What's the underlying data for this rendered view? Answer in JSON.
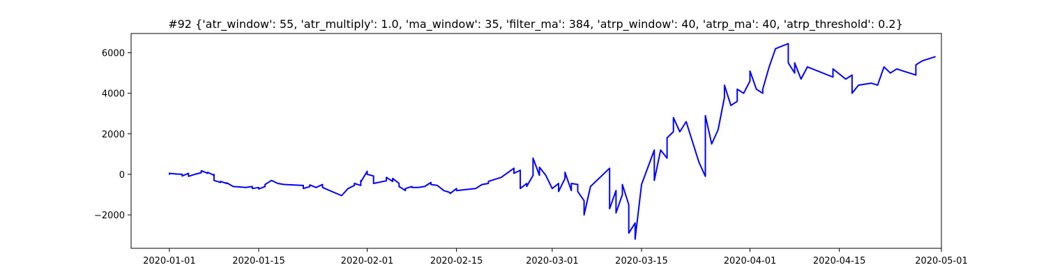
{
  "chart_data": {
    "type": "line",
    "title": "#92 {'atr_window': 55, 'atr_multiply': 1.0, 'ma_window': 35, 'filter_ma': 384, 'atrp_window': 40, 'atrp_ma': 40, 'atrp_threshold': 0.2}",
    "xlabel": "",
    "ylabel": "",
    "x_type": "date",
    "xlim": [
      "2019-12-26",
      "2020-05-01"
    ],
    "ylim": [
      -3650,
      6950
    ],
    "x_ticks": [
      "2020-01-01",
      "2020-01-15",
      "2020-02-01",
      "2020-02-15",
      "2020-03-01",
      "2020-03-15",
      "2020-04-01",
      "2020-04-15",
      "2020-05-01"
    ],
    "y_ticks": [
      -2000,
      0,
      2000,
      4000,
      6000
    ],
    "grid": false,
    "legend": "none",
    "series": [
      {
        "color": "#0000ff",
        "points": [
          [
            "2020-01-01",
            0
          ],
          [
            "2020-01-01",
            50
          ],
          [
            "2020-01-02",
            20
          ],
          [
            "2020-01-03",
            0
          ],
          [
            "2020-01-03",
            -80
          ],
          [
            "2020-01-04",
            50
          ],
          [
            "2020-01-04",
            -100
          ],
          [
            "2020-01-05",
            0
          ],
          [
            "2020-01-06",
            80
          ],
          [
            "2020-01-06",
            180
          ],
          [
            "2020-01-07",
            50
          ],
          [
            "2020-01-07",
            100
          ],
          [
            "2020-01-08",
            -50
          ],
          [
            "2020-01-08",
            0
          ],
          [
            "2020-01-08",
            -300
          ],
          [
            "2020-01-09",
            -400
          ],
          [
            "2020-01-09",
            -350
          ],
          [
            "2020-01-10",
            -450
          ],
          [
            "2020-01-10",
            -420
          ],
          [
            "2020-01-11",
            -600
          ],
          [
            "2020-01-12",
            -620
          ],
          [
            "2020-01-13",
            -650
          ],
          [
            "2020-01-14",
            -600
          ],
          [
            "2020-01-14",
            -700
          ],
          [
            "2020-01-15",
            -650
          ],
          [
            "2020-01-15",
            -720
          ],
          [
            "2020-01-16",
            -600
          ],
          [
            "2020-01-16",
            -500
          ],
          [
            "2020-01-17",
            -300
          ],
          [
            "2020-01-18",
            -450
          ],
          [
            "2020-01-19",
            -500
          ],
          [
            "2020-01-22",
            -550
          ],
          [
            "2020-01-22",
            -700
          ],
          [
            "2020-01-23",
            -600
          ],
          [
            "2020-01-23",
            -520
          ],
          [
            "2020-01-24",
            -650
          ],
          [
            "2020-01-25",
            -500
          ],
          [
            "2020-01-25",
            -650
          ],
          [
            "2020-01-28",
            -1050
          ],
          [
            "2020-01-29",
            -700
          ],
          [
            "2020-01-30",
            -550
          ],
          [
            "2020-01-30",
            -450
          ],
          [
            "2020-01-31",
            -550
          ],
          [
            "2020-01-31",
            -300
          ],
          [
            "2020-01-31",
            -380
          ],
          [
            "2020-02-01",
            150
          ],
          [
            "2020-02-01",
            0
          ],
          [
            "2020-02-02",
            -80
          ],
          [
            "2020-02-02",
            -450
          ],
          [
            "2020-02-04",
            -320
          ],
          [
            "2020-02-04",
            -150
          ],
          [
            "2020-02-05",
            -350
          ],
          [
            "2020-02-05",
            -200
          ],
          [
            "2020-02-06",
            -450
          ],
          [
            "2020-02-06",
            -600
          ],
          [
            "2020-02-07",
            -800
          ],
          [
            "2020-02-07",
            -700
          ],
          [
            "2020-02-08",
            -600
          ],
          [
            "2020-02-08",
            -650
          ],
          [
            "2020-02-09",
            -650
          ],
          [
            "2020-02-10",
            -600
          ],
          [
            "2020-02-11",
            -400
          ],
          [
            "2020-02-11",
            -500
          ],
          [
            "2020-02-12",
            -550
          ],
          [
            "2020-02-13",
            -800
          ],
          [
            "2020-02-14",
            -900
          ],
          [
            "2020-02-14",
            -950
          ],
          [
            "2020-02-15",
            -700
          ],
          [
            "2020-02-15",
            -800
          ],
          [
            "2020-02-18",
            -700
          ],
          [
            "2020-02-19",
            -500
          ],
          [
            "2020-02-20",
            -450
          ],
          [
            "2020-02-20",
            -350
          ],
          [
            "2020-02-21",
            -250
          ],
          [
            "2020-02-22",
            -150
          ],
          [
            "2020-02-24",
            300
          ],
          [
            "2020-02-24",
            50
          ],
          [
            "2020-02-25",
            200
          ],
          [
            "2020-02-25",
            -700
          ],
          [
            "2020-02-26",
            -450
          ],
          [
            "2020-02-26",
            -600
          ],
          [
            "2020-02-27",
            -50
          ],
          [
            "2020-02-27",
            800
          ],
          [
            "2020-02-28",
            -50
          ],
          [
            "2020-02-28",
            350
          ],
          [
            "2020-02-29",
            -50
          ],
          [
            "2020-03-01",
            -700
          ],
          [
            "2020-03-02",
            -450
          ],
          [
            "2020-03-02",
            -850
          ],
          [
            "2020-03-03",
            -200
          ],
          [
            "2020-03-03",
            100
          ],
          [
            "2020-03-04",
            -800
          ],
          [
            "2020-03-04",
            -450
          ],
          [
            "2020-03-05",
            -500
          ],
          [
            "2020-03-05",
            -850
          ],
          [
            "2020-03-06",
            -1300
          ],
          [
            "2020-03-06",
            -2000
          ],
          [
            "2020-03-07",
            -600
          ],
          [
            "2020-03-10",
            300
          ],
          [
            "2020-03-10",
            -1700
          ],
          [
            "2020-03-11",
            -800
          ],
          [
            "2020-03-11",
            -1500
          ],
          [
            "2020-03-11",
            -1900
          ],
          [
            "2020-03-12",
            -1000
          ],
          [
            "2020-03-12",
            -500
          ],
          [
            "2020-03-13",
            -1500
          ],
          [
            "2020-03-13",
            -2900
          ],
          [
            "2020-03-14",
            -2400
          ],
          [
            "2020-03-14",
            -3200
          ],
          [
            "2020-03-15",
            -500
          ],
          [
            "2020-03-17",
            1200
          ],
          [
            "2020-03-17",
            -300
          ],
          [
            "2020-03-18",
            1200
          ],
          [
            "2020-03-19",
            800
          ],
          [
            "2020-03-19",
            1800
          ],
          [
            "2020-03-20",
            2100
          ],
          [
            "2020-03-20",
            2800
          ],
          [
            "2020-03-21",
            2100
          ],
          [
            "2020-03-22",
            2600
          ],
          [
            "2020-03-24",
            600
          ],
          [
            "2020-03-25",
            -100
          ],
          [
            "2020-03-25",
            2900
          ],
          [
            "2020-03-26",
            1500
          ],
          [
            "2020-03-27",
            2200
          ],
          [
            "2020-03-28",
            3800
          ],
          [
            "2020-03-28",
            4400
          ],
          [
            "2020-03-29",
            3400
          ],
          [
            "2020-03-30",
            3600
          ],
          [
            "2020-03-30",
            4200
          ],
          [
            "2020-03-31",
            4000
          ],
          [
            "2020-04-01",
            4600
          ],
          [
            "2020-04-01",
            5100
          ],
          [
            "2020-04-02",
            4200
          ],
          [
            "2020-04-03",
            4000
          ],
          [
            "2020-04-03",
            4200
          ],
          [
            "2020-04-04",
            5300
          ],
          [
            "2020-04-05",
            6200
          ],
          [
            "2020-04-07",
            6450
          ],
          [
            "2020-04-07",
            5500
          ],
          [
            "2020-04-08",
            5000
          ],
          [
            "2020-04-08",
            5500
          ],
          [
            "2020-04-09",
            4700
          ],
          [
            "2020-04-10",
            5300
          ],
          [
            "2020-04-14",
            4800
          ],
          [
            "2020-04-14",
            5200
          ],
          [
            "2020-04-16",
            4700
          ],
          [
            "2020-04-17",
            4900
          ],
          [
            "2020-04-17",
            4000
          ],
          [
            "2020-04-18",
            4400
          ],
          [
            "2020-04-20",
            4500
          ],
          [
            "2020-04-21",
            4400
          ],
          [
            "2020-04-22",
            5300
          ],
          [
            "2020-04-23",
            5000
          ],
          [
            "2020-04-24",
            5200
          ],
          [
            "2020-04-25",
            5100
          ],
          [
            "2020-04-27",
            4900
          ],
          [
            "2020-04-27",
            5400
          ],
          [
            "2020-04-28",
            5600
          ],
          [
            "2020-04-29",
            5700
          ],
          [
            "2020-04-30",
            5800
          ]
        ]
      }
    ]
  }
}
